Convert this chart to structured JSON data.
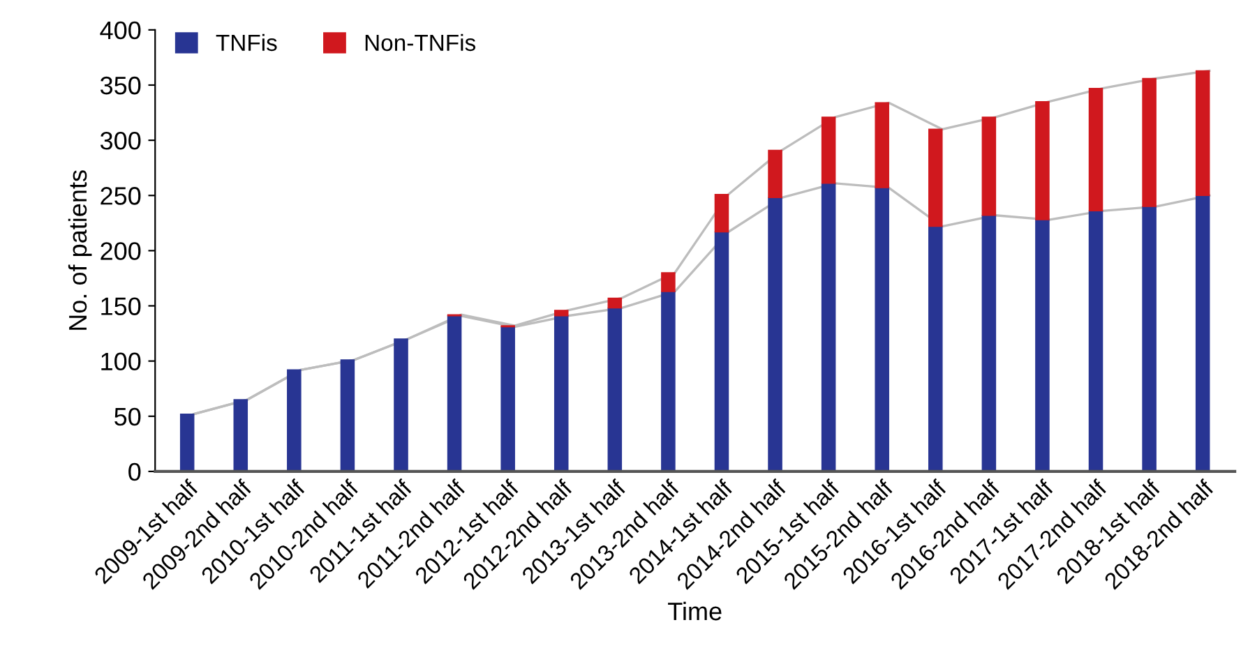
{
  "chart_data": {
    "type": "bar",
    "stacked": true,
    "xlabel": "Time",
    "ylabel": "No. of patients",
    "categories": [
      "2009-1st half",
      "2009-2nd half",
      "2010-1st half",
      "2010-2nd half",
      "2011-1st half",
      "2011-2nd half",
      "2012-1st half",
      "2012-2nd half",
      "2013-1st half",
      "2013-2nd half",
      "2014-1st half",
      "2014-2nd half",
      "2015-1st half",
      "2015-2nd half",
      "2016-1st half",
      "2016-2nd half",
      "2017-1st half",
      "2017-2nd half",
      "2018-1st half",
      "2018-2nd half"
    ],
    "series": [
      {
        "name": "TNFis",
        "color": "#283593",
        "values": [
          52,
          65,
          92,
          101,
          120,
          141,
          131,
          141,
          148,
          163,
          217,
          248,
          261,
          257,
          222,
          232,
          228,
          236,
          240,
          250
        ]
      },
      {
        "name": "Non-TNFis",
        "color": "#d0181e",
        "values": [
          null,
          null,
          null,
          null,
          null,
          1,
          1,
          5,
          9,
          17,
          34,
          43,
          60,
          77,
          88,
          89,
          107,
          111,
          116,
          113
        ]
      },
      {
        "type": "line",
        "color": "#bdbdbd",
        "values": [
          52,
          65,
          92,
          101,
          120,
          141,
          131,
          141,
          148,
          163,
          217,
          248,
          261,
          257,
          222,
          232,
          228,
          236,
          240,
          250
        ]
      },
      {
        "type": "line",
        "color": "#bdbdbd",
        "values": [
          52,
          65,
          92,
          101,
          120,
          142,
          132,
          146,
          157,
          180,
          251,
          291,
          321,
          334,
          310,
          321,
          335,
          347,
          356,
          363
        ]
      }
    ],
    "ylim": [
      0,
      400
    ],
    "yticks": [
      0,
      50,
      100,
      150,
      200,
      250,
      300,
      350,
      400
    ],
    "grid": false,
    "legend": "top left"
  }
}
